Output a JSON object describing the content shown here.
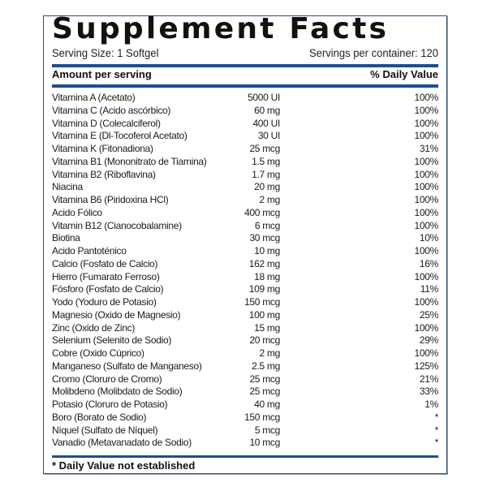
{
  "panel": {
    "title": "Supplement Facts",
    "serving_size": "Serving Size: 1 Softgel",
    "servings_per_container": "Servings per container: 120",
    "header_amount": "Amount per serving",
    "header_dv": "% Daily Value",
    "footnote": "* Daily Value not established"
  },
  "colors": {
    "rule": "#1f4e8c",
    "border": "#2a4a7a",
    "text": "#111111"
  },
  "nutrients": [
    {
      "name": "Vitamina A (Acetato)",
      "amount": "5000 UI",
      "dv": "100%"
    },
    {
      "name": "Vitamina C (Acido ascórbico)",
      "amount": "60 mg",
      "dv": "100%"
    },
    {
      "name": "Vitamina D (Colecalciferol)",
      "amount": "400 UI",
      "dv": "100%"
    },
    {
      "name": "Vitamina E (Dl-Tocoferol Acetato)",
      "amount": "30 UI",
      "dv": "100%"
    },
    {
      "name": "Vitamina K (Fitonadiona)",
      "amount": "25 mcg",
      "dv": "31%"
    },
    {
      "name": "Vitamina B1 (Mononitrato de Tiamina)",
      "amount": "1.5 mg",
      "dv": "100%"
    },
    {
      "name": "Vitamina B2 (Riboflavina)",
      "amount": "1.7 mg",
      "dv": "100%"
    },
    {
      "name": "Niacina",
      "amount": "20 mg",
      "dv": "100%"
    },
    {
      "name": "Vitamina B6 (Piridoxina HCl)",
      "amount": "2 mg",
      "dv": "100%"
    },
    {
      "name": "Acido Fólico",
      "amount": "400 mcg",
      "dv": "100%"
    },
    {
      "name": "Vitamin B12 (Cianocobalamine)",
      "amount": "6 mcg",
      "dv": "100%"
    },
    {
      "name": "Biotina",
      "amount": "30 mcg",
      "dv": "10%"
    },
    {
      "name": "Acido Pantoténico",
      "amount": "10 mg",
      "dv": "100%"
    },
    {
      "name": "Calcio (Fosfato de Calcio)",
      "amount": "162 mg",
      "dv": "16%"
    },
    {
      "name": "Hierro (Fumarato Ferroso)",
      "amount": "18 mg",
      "dv": "100%"
    },
    {
      "name": "Fósforo (Fosfato de Calcio)",
      "amount": "109 mg",
      "dv": "11%"
    },
    {
      "name": "Yodo (Yoduro de Potasio)",
      "amount": "150 mcg",
      "dv": "100%"
    },
    {
      "name": "Magnesio (Oxido de Magnesio)",
      "amount": "100 mg",
      "dv": "25%"
    },
    {
      "name": "Zinc (Oxido de Zinc)",
      "amount": "15 mg",
      "dv": "100%"
    },
    {
      "name": "Selenium (Selenito de Sodio)",
      "amount": "20 mcg",
      "dv": "29%"
    },
    {
      "name": "Cobre (Oxido Cúprico)",
      "amount": "2 mg",
      "dv": "100%"
    },
    {
      "name": "Manganeso (Sulfato de Manganeso)",
      "amount": "2.5 mg",
      "dv": "125%"
    },
    {
      "name": "Cromo (Cloruro de Cromo)",
      "amount": "25 mcg",
      "dv": "21%"
    },
    {
      "name": "Molibdeno (Molibdato de Sodio)",
      "amount": "25 mcg",
      "dv": "33%"
    },
    {
      "name": "Potasio (Cloruro de Potasio)",
      "amount": "40 mg",
      "dv": "1%"
    },
    {
      "name": "Boro (Borato de Sodio)",
      "amount": "150 mcg",
      "dv": "*"
    },
    {
      "name": "Níquel (Sulfato de Níquel)",
      "amount": "5 mcg",
      "dv": "*"
    },
    {
      "name": "Vanadio (Metavanadato de Sodio)",
      "amount": "10 mcg",
      "dv": "*"
    }
  ]
}
